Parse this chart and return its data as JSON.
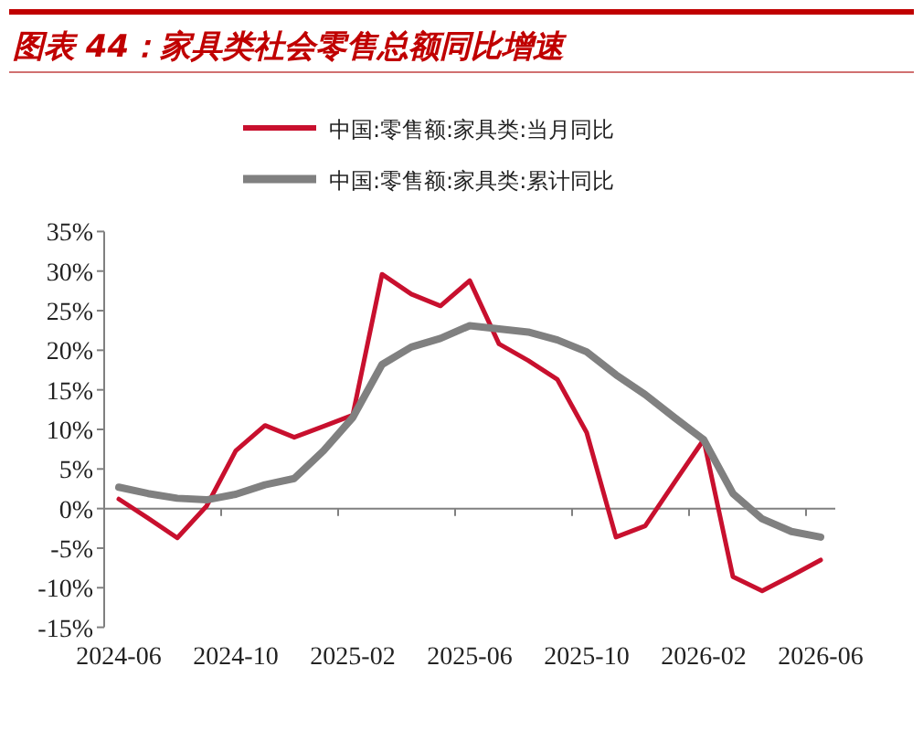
{
  "chart_data": {
    "type": "line",
    "title": "图表 44：家具类社会零售总额同比增速",
    "categories": [
      "2024-06",
      null,
      null,
      null,
      "2024-10",
      null,
      null,
      null,
      "2025-02",
      null,
      null,
      null,
      "2025-06",
      null,
      null,
      null,
      "2025-10",
      null,
      null,
      null,
      "2026-02",
      null,
      null,
      null,
      "2026-06"
    ],
    "series": [
      {
        "name": "中国:零售额:家具类:当月同比",
        "color": "#c8102e",
        "values": [
          1.2,
          -1.2,
          -3.7,
          0.3,
          7.3,
          10.5,
          9.0,
          10.4,
          11.8,
          29.6,
          27.1,
          25.6,
          28.8,
          20.8,
          18.7,
          16.3,
          9.6,
          -3.6,
          -2.2,
          3.3,
          8.7,
          -8.6,
          -10.4,
          -8.5,
          -6.5
        ]
      },
      {
        "name": "中国:零售额:家具类:累计同比",
        "color": "#808080",
        "values": [
          2.7,
          1.9,
          1.3,
          1.1,
          1.8,
          3.0,
          3.8,
          7.3,
          11.5,
          18.2,
          20.4,
          21.5,
          23.1,
          22.7,
          22.3,
          21.3,
          19.8,
          16.9,
          14.4,
          11.5,
          8.7,
          1.9,
          -1.3,
          -2.9,
          -3.6
        ]
      }
    ],
    "ylim": [
      -15,
      35
    ],
    "yticks": [
      {
        "value": -15,
        "label": "-15%"
      },
      {
        "value": -10,
        "label": "-10%"
      },
      {
        "value": -5,
        "label": "-5%"
      },
      {
        "value": 0,
        "label": "0%"
      },
      {
        "value": 5,
        "label": "5%"
      },
      {
        "value": 10,
        "label": "10%"
      },
      {
        "value": 15,
        "label": "15%"
      },
      {
        "value": 20,
        "label": "20%"
      },
      {
        "value": 25,
        "label": "25%"
      },
      {
        "value": 30,
        "label": "30%"
      },
      {
        "value": 35,
        "label": "35%"
      }
    ],
    "legend": "top"
  }
}
